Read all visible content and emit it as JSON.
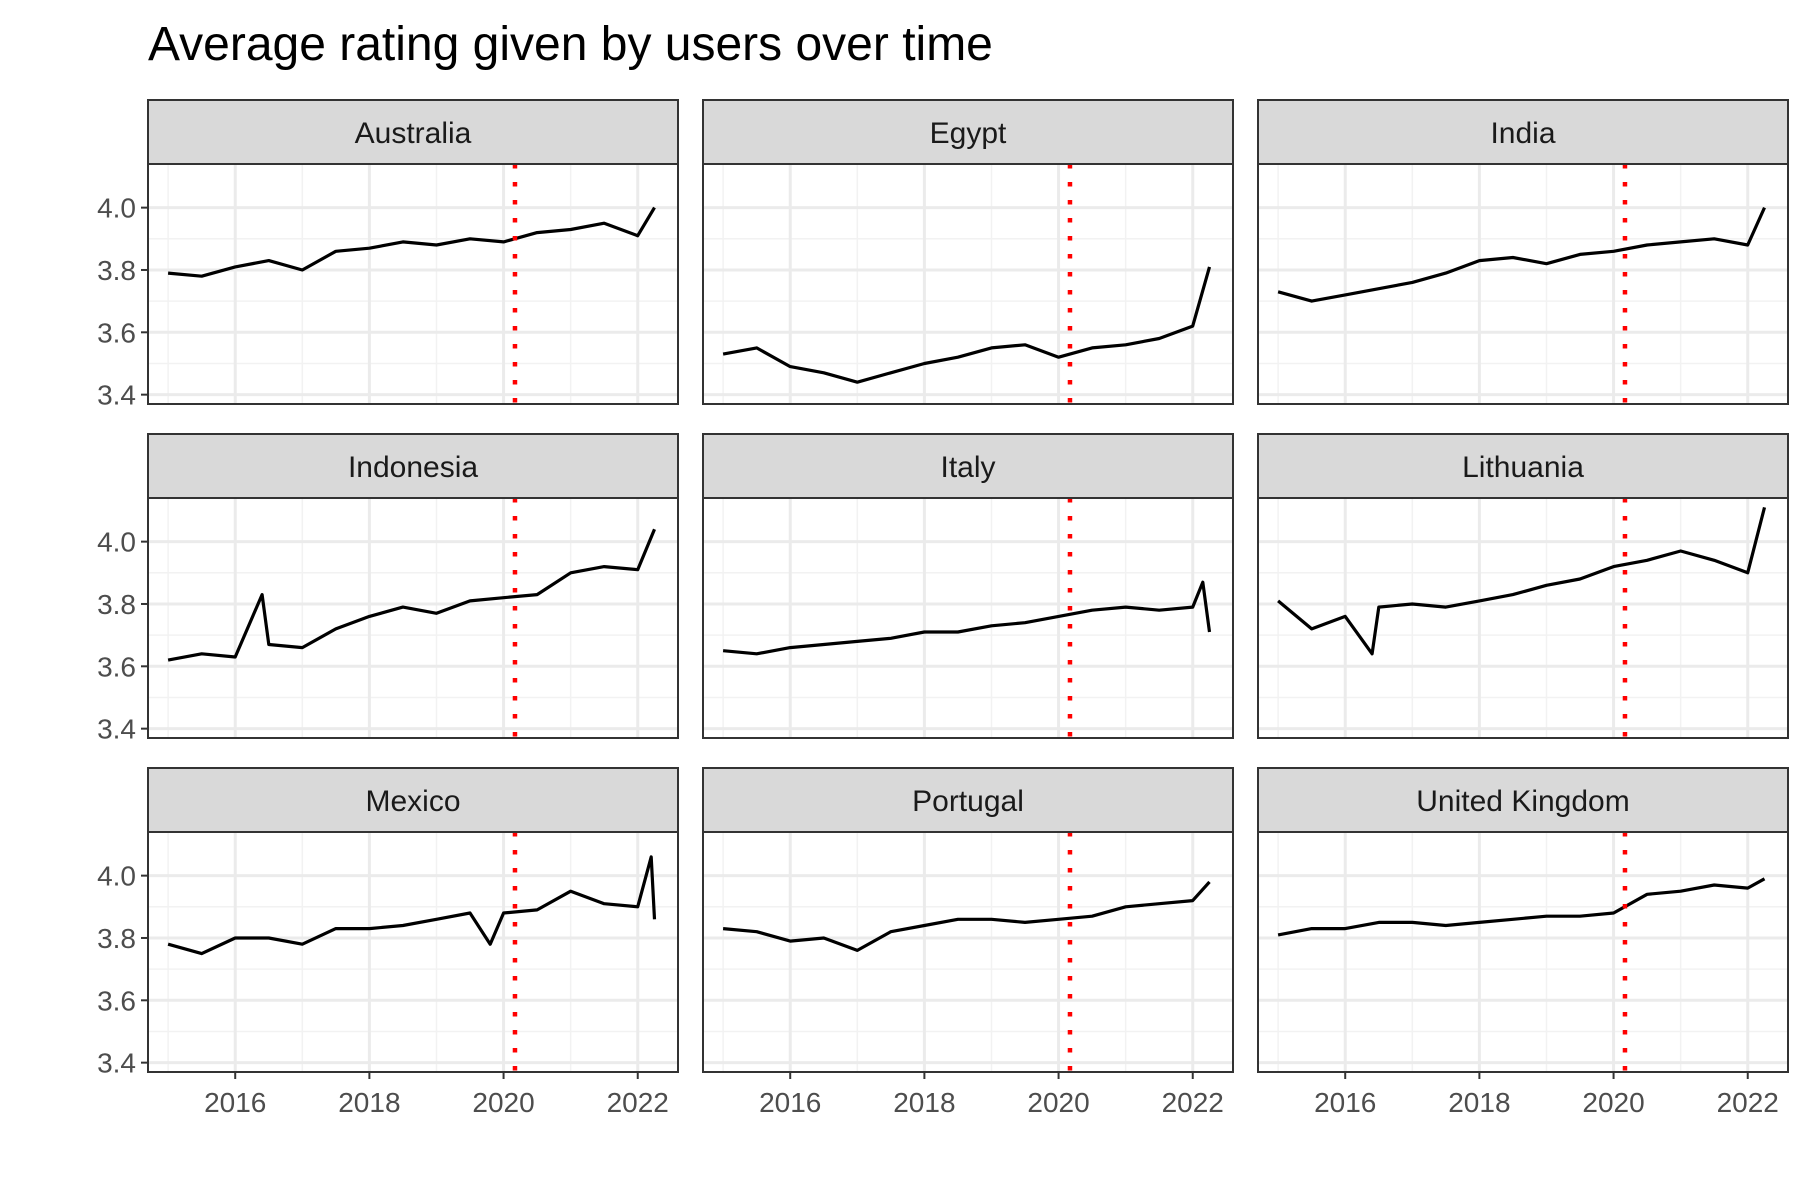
{
  "chart_data": {
    "type": "line",
    "title": "Average rating given by users over time",
    "xlabel": "",
    "ylabel": "",
    "x_range": [
      2014.7,
      2022.6
    ],
    "y_range": [
      3.37,
      4.14
    ],
    "x_ticks": [
      2016,
      2018,
      2020,
      2022
    ],
    "x_tick_labels": [
      "2016",
      "2018",
      "2020",
      "2022"
    ],
    "y_ticks": [
      3.4,
      3.6,
      3.8,
      4.0
    ],
    "y_tick_labels": [
      "3.4",
      "3.6",
      "3.8",
      "4.0"
    ],
    "grid": true,
    "reference_line": {
      "x": 2020.17,
      "color": "#ff0000",
      "style": "dotted"
    },
    "line_color": "#000000",
    "facets": [
      {
        "name": "Australia",
        "x": [
          2015.0,
          2015.5,
          2016.0,
          2016.5,
          2017.0,
          2017.5,
          2018.0,
          2018.5,
          2019.0,
          2019.5,
          2020.0,
          2020.5,
          2021.0,
          2021.5,
          2022.0,
          2022.25
        ],
        "y": [
          3.79,
          3.78,
          3.81,
          3.83,
          3.8,
          3.86,
          3.87,
          3.89,
          3.88,
          3.9,
          3.89,
          3.92,
          3.93,
          3.95,
          3.91,
          4.0
        ]
      },
      {
        "name": "Egypt",
        "x": [
          2015.0,
          2015.5,
          2016.0,
          2016.5,
          2017.0,
          2017.5,
          2018.0,
          2018.5,
          2019.0,
          2019.5,
          2020.0,
          2020.5,
          2021.0,
          2021.5,
          2022.0,
          2022.25
        ],
        "y": [
          3.53,
          3.55,
          3.49,
          3.47,
          3.44,
          3.47,
          3.5,
          3.52,
          3.55,
          3.56,
          3.52,
          3.55,
          3.56,
          3.58,
          3.62,
          3.81
        ]
      },
      {
        "name": "India",
        "x": [
          2015.0,
          2015.5,
          2016.0,
          2016.5,
          2017.0,
          2017.5,
          2018.0,
          2018.5,
          2019.0,
          2019.5,
          2020.0,
          2020.5,
          2021.0,
          2021.5,
          2022.0,
          2022.25
        ],
        "y": [
          3.73,
          3.7,
          3.72,
          3.74,
          3.76,
          3.79,
          3.83,
          3.84,
          3.82,
          3.85,
          3.86,
          3.88,
          3.89,
          3.9,
          3.88,
          4.0
        ]
      },
      {
        "name": "Indonesia",
        "x": [
          2015.0,
          2015.5,
          2016.0,
          2016.4,
          2016.5,
          2017.0,
          2017.5,
          2018.0,
          2018.5,
          2019.0,
          2019.5,
          2020.0,
          2020.5,
          2021.0,
          2021.5,
          2022.0,
          2022.25
        ],
        "y": [
          3.62,
          3.64,
          3.63,
          3.83,
          3.67,
          3.66,
          3.72,
          3.76,
          3.79,
          3.77,
          3.81,
          3.82,
          3.83,
          3.9,
          3.92,
          3.91,
          4.04
        ]
      },
      {
        "name": "Italy",
        "x": [
          2015.0,
          2015.5,
          2016.0,
          2016.5,
          2017.0,
          2017.5,
          2018.0,
          2018.5,
          2019.0,
          2019.5,
          2020.0,
          2020.5,
          2021.0,
          2021.5,
          2022.0,
          2022.15,
          2022.25
        ],
        "y": [
          3.65,
          3.64,
          3.66,
          3.67,
          3.68,
          3.69,
          3.71,
          3.71,
          3.73,
          3.74,
          3.76,
          3.78,
          3.79,
          3.78,
          3.79,
          3.87,
          3.71
        ]
      },
      {
        "name": "Lithuania",
        "x": [
          2015.0,
          2015.5,
          2016.0,
          2016.4,
          2016.5,
          2017.0,
          2017.5,
          2018.0,
          2018.5,
          2019.0,
          2019.5,
          2020.0,
          2020.5,
          2021.0,
          2021.5,
          2022.0,
          2022.25
        ],
        "y": [
          3.81,
          3.72,
          3.76,
          3.64,
          3.79,
          3.8,
          3.79,
          3.81,
          3.83,
          3.86,
          3.88,
          3.92,
          3.94,
          3.97,
          3.94,
          3.9,
          4.11
        ]
      },
      {
        "name": "Mexico",
        "x": [
          2015.0,
          2015.5,
          2016.0,
          2016.5,
          2017.0,
          2017.5,
          2018.0,
          2018.5,
          2019.0,
          2019.5,
          2019.8,
          2020.0,
          2020.5,
          2021.0,
          2021.5,
          2022.0,
          2022.2,
          2022.25
        ],
        "y": [
          3.78,
          3.75,
          3.8,
          3.8,
          3.78,
          3.83,
          3.83,
          3.84,
          3.86,
          3.88,
          3.78,
          3.88,
          3.89,
          3.95,
          3.91,
          3.9,
          4.06,
          3.86
        ]
      },
      {
        "name": "Portugal",
        "x": [
          2015.0,
          2015.5,
          2016.0,
          2016.5,
          2017.0,
          2017.5,
          2018.0,
          2018.5,
          2019.0,
          2019.5,
          2020.0,
          2020.5,
          2021.0,
          2021.5,
          2022.0,
          2022.25
        ],
        "y": [
          3.83,
          3.82,
          3.79,
          3.8,
          3.76,
          3.82,
          3.84,
          3.86,
          3.86,
          3.85,
          3.86,
          3.87,
          3.9,
          3.91,
          3.92,
          3.98
        ]
      },
      {
        "name": "United Kingdom",
        "x": [
          2015.0,
          2015.5,
          2016.0,
          2016.5,
          2017.0,
          2017.5,
          2018.0,
          2018.5,
          2019.0,
          2019.5,
          2020.0,
          2020.5,
          2021.0,
          2021.5,
          2022.0,
          2022.25
        ],
        "y": [
          3.81,
          3.83,
          3.83,
          3.85,
          3.85,
          3.84,
          3.85,
          3.86,
          3.87,
          3.87,
          3.88,
          3.94,
          3.95,
          3.97,
          3.96,
          3.99
        ]
      }
    ]
  }
}
